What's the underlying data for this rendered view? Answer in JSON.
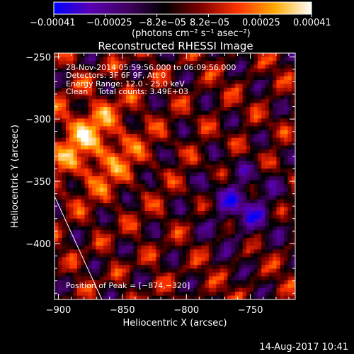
{
  "chart_data": {
    "type": "heatmap",
    "title": "Reconstructed RHESSI Image",
    "xlabel": "Heliocentric X (arcsec)",
    "ylabel": "Heliocentric Y (arcsec)",
    "xlim": [
      -903,
      -715
    ],
    "ylim": [
      -445,
      -247
    ],
    "xticks": [
      -900,
      -850,
      -800,
      -750
    ],
    "yticks": [
      -250,
      -300,
      -350,
      -400
    ],
    "xtick_labels": [
      "−900",
      "−850",
      "−800",
      "−750"
    ],
    "ytick_labels": [
      "−250",
      "−300",
      "−350",
      "−400"
    ],
    "colorbar": {
      "min": -0.00041,
      "max": 0.00041,
      "tick_labels": [
        "−0.00041",
        "−0.00025",
        "−8.2e−05",
        "8.2e−05",
        "0.00025",
        "0.00041"
      ],
      "unit_label": "(photons cm⁻² s⁻¹ asec⁻²)",
      "colormap_stops": [
        "#0000ff",
        "#5a00b4",
        "#400060",
        "#000000",
        "#800000",
        "#ff3300",
        "#ffaa00",
        "#ffffff"
      ]
    },
    "annotations": {
      "time_range": "28-Nov-2014 05:59:56.000 to 06:09:56.000",
      "detectors": "Detectors: 3F 6F 9F, Att 0",
      "energy": "Energy Range: 12.0 - 25.0 keV",
      "method_counts": "Clean    Total counts: 3.49E+03",
      "peak": "Position of Peak = [−874,−320]"
    },
    "peak_position": [
      -874,
      -320
    ],
    "limb_curve": [
      [
        -903,
        -362
      ],
      [
        -866,
        -445
      ]
    ],
    "timestamp": "14-Aug-2017 10:41"
  }
}
